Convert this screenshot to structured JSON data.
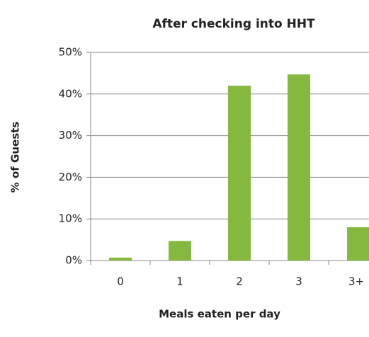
{
  "chart_data": {
    "type": "bar",
    "title": "After checking into HHT",
    "x_label": "Meals eaten per day",
    "y_label": "% of Guests",
    "categories": [
      "0",
      "1",
      "2",
      "3",
      "3+"
    ],
    "values": [
      0.7,
      4.7,
      42,
      44.7,
      8
    ],
    "color": "#84b83e",
    "ylim": [
      0,
      50
    ],
    "yticks": [
      {
        "value": 0,
        "label": "0%"
      },
      {
        "value": 10,
        "label": "10%"
      },
      {
        "value": 20,
        "label": "20%"
      },
      {
        "value": 30,
        "label": "30%"
      },
      {
        "value": 40,
        "label": "40%"
      },
      {
        "value": 50,
        "label": "50%"
      }
    ],
    "grid": true
  }
}
